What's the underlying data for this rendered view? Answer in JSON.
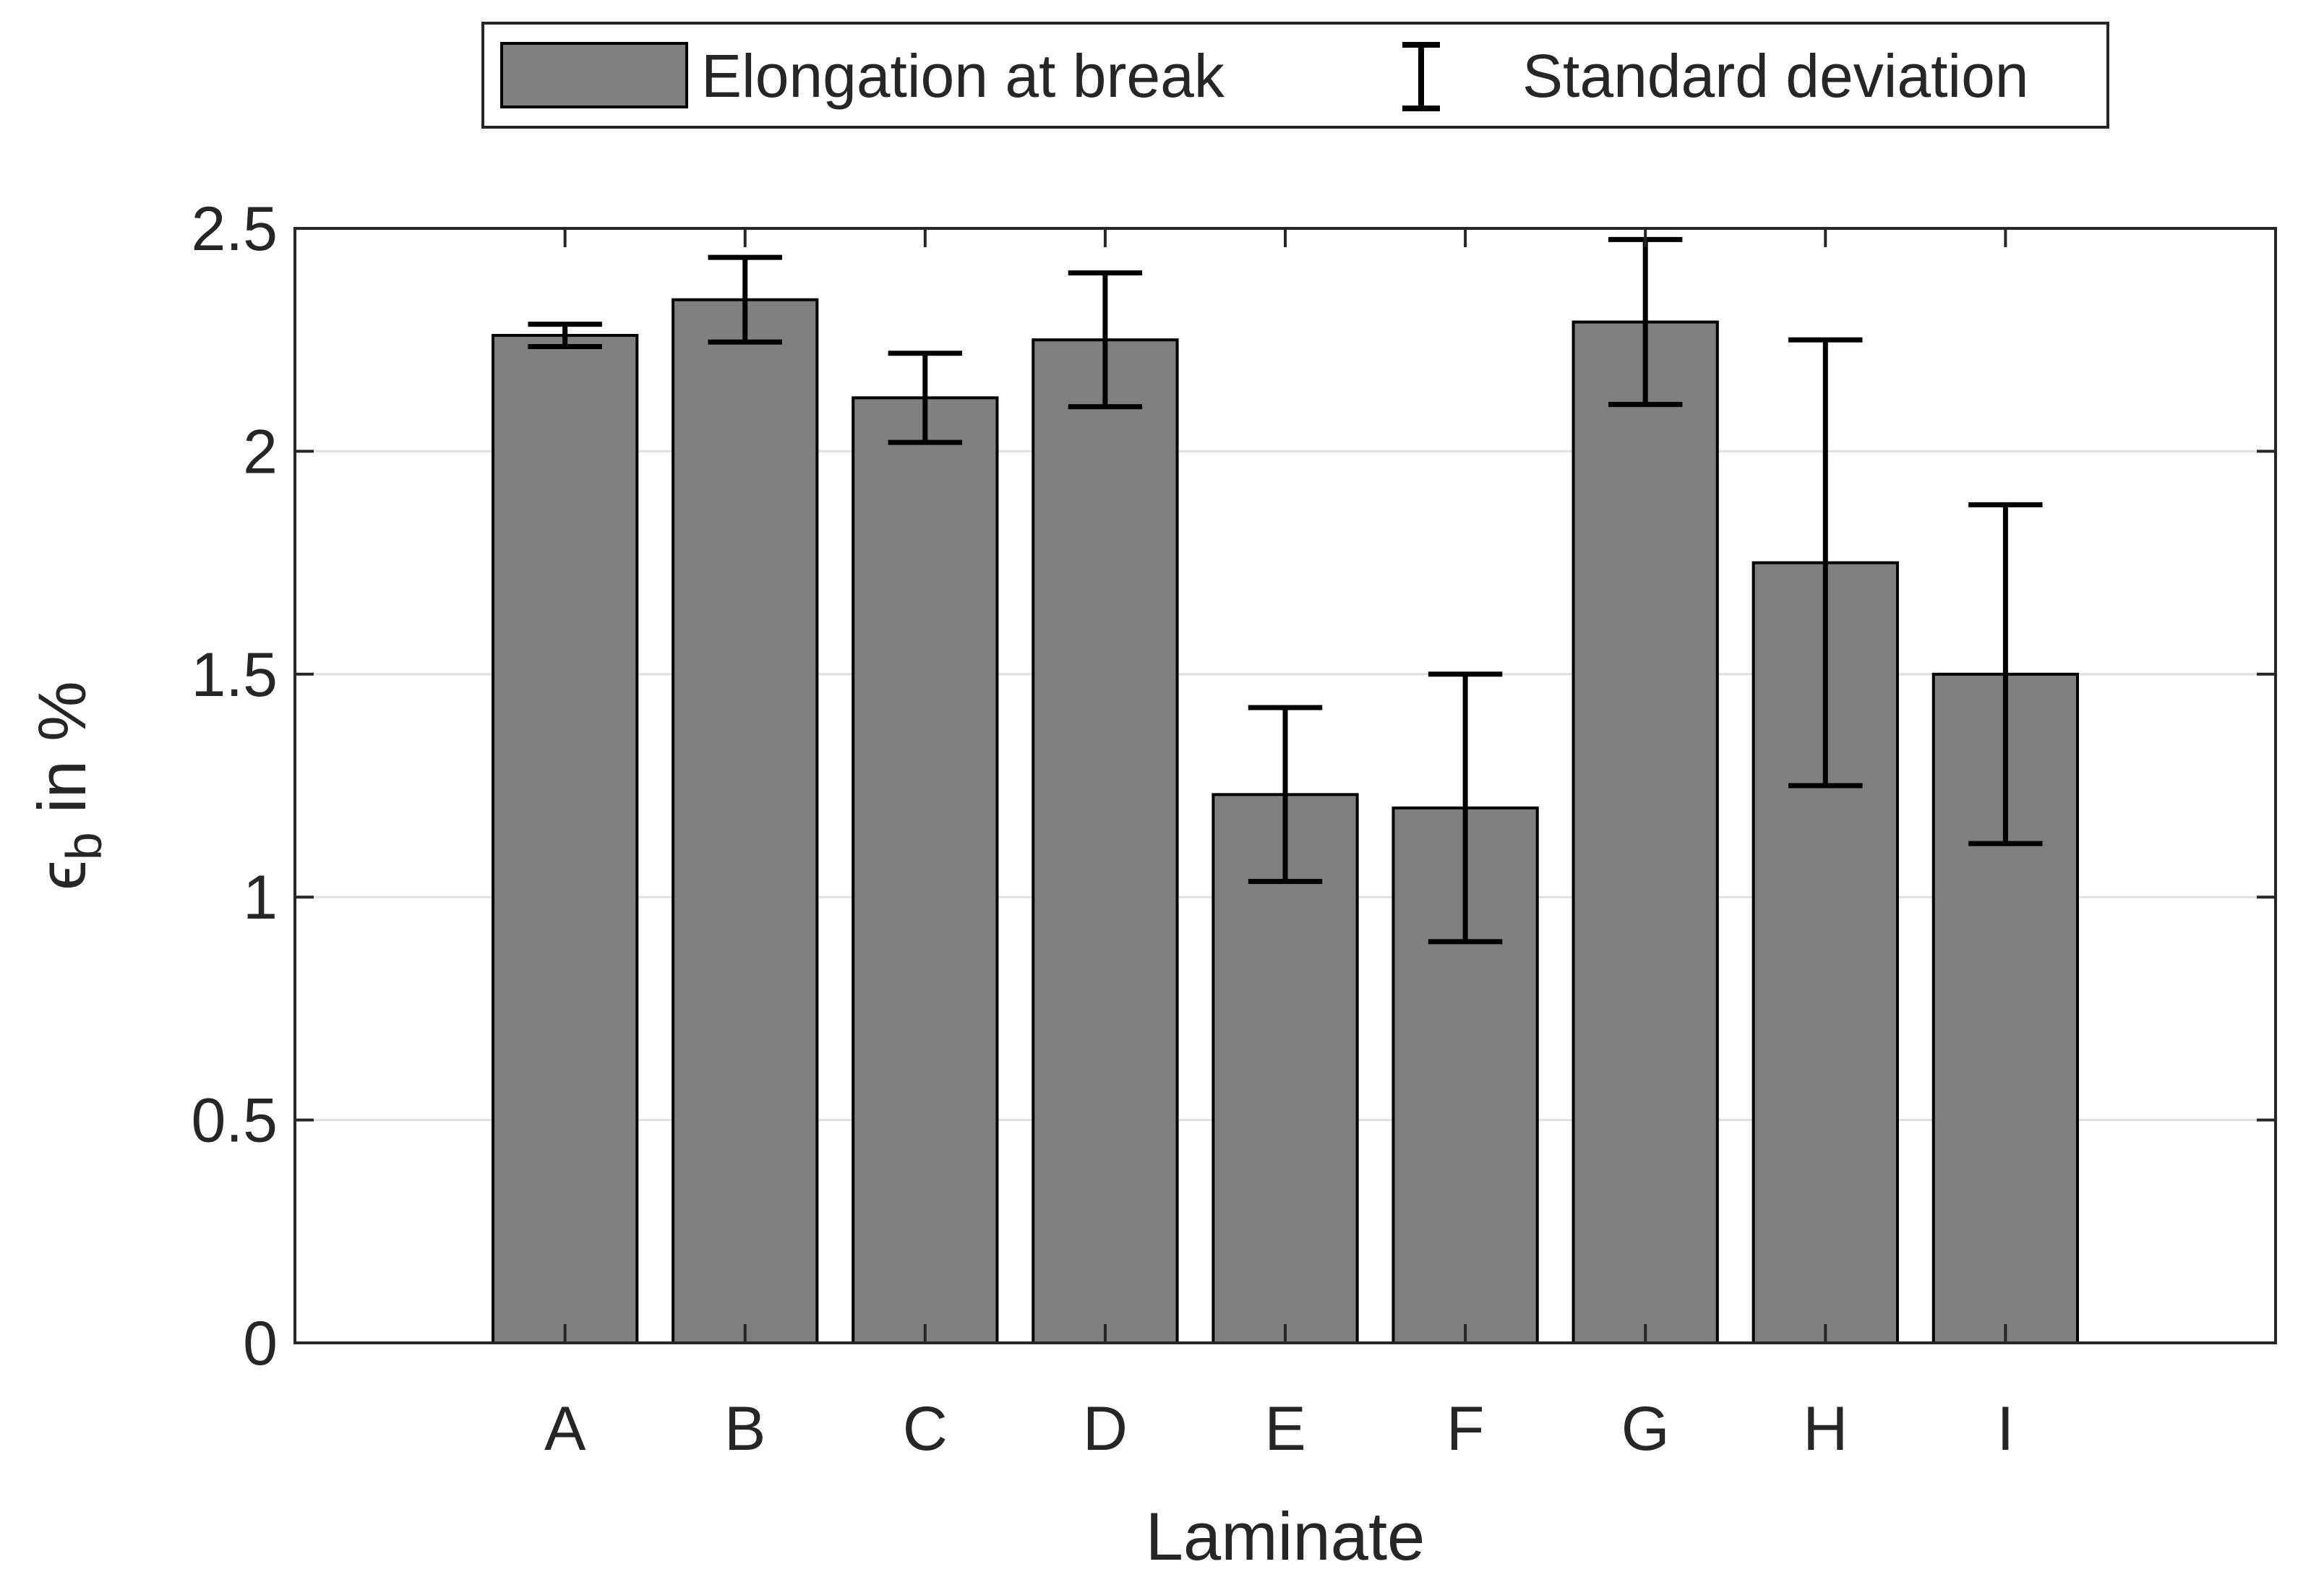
{
  "chart_data": {
    "type": "bar",
    "title": "",
    "xlabel": "Laminate",
    "ylabel_main": "ϵ",
    "ylabel_sub": "b",
    "ylabel_rest": " in %",
    "categories": [
      "A",
      "B",
      "C",
      "D",
      "E",
      "F",
      "G",
      "H",
      "I"
    ],
    "series": [
      {
        "name": "Elongation at break",
        "values": [
          2.26,
          2.34,
          2.12,
          2.25,
          1.23,
          1.2,
          2.29,
          1.75,
          1.5
        ],
        "std": [
          0.025,
          0.095,
          0.1,
          0.15,
          0.195,
          0.3,
          0.185,
          0.5,
          0.38
        ]
      }
    ],
    "error_label": "Standard deviation",
    "ylim": [
      0,
      2.5
    ],
    "yticks": [
      0,
      0.5,
      1,
      1.5,
      2,
      2.5
    ],
    "ytick_labels": [
      "0",
      "0.5",
      "1",
      "1.5",
      "2",
      "2.5"
    ],
    "grid": "horizontal",
    "legend_position": "top-center",
    "colors": {
      "bar_fill": "#808080",
      "bar_edge": "#000000",
      "errorbar": "#000000",
      "axis": "#262626",
      "grid": "#e0e0e0"
    }
  }
}
